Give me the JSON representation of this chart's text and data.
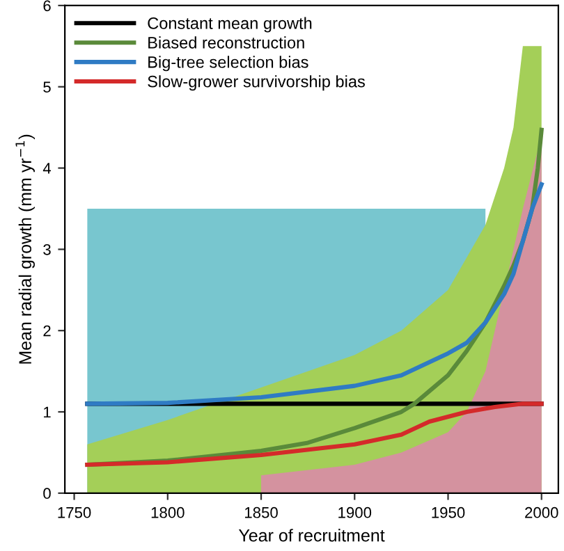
{
  "chart_data": {
    "type": "line",
    "xlabel": "Year of recruitment",
    "ylabel": "Mean radial growth (mm yr$^{−1}$)",
    "xlim": [
      1745,
      2009
    ],
    "ylim": [
      0,
      6
    ],
    "xticks": [
      1750,
      1800,
      1850,
      1900,
      1950,
      2000
    ],
    "yticks": [
      0,
      1,
      2,
      3,
      4,
      5,
      6
    ],
    "grid": false,
    "legend": "top left",
    "marker": "none",
    "line_style": "solid",
    "series": [
      {
        "type": "area",
        "color": "#78c6cf",
        "x": [
          1757,
          1800,
          1850,
          1900,
          1950,
          1970
        ],
        "values": [
          3.5,
          3.5,
          3.5,
          3.5,
          3.5,
          3.5
        ]
      },
      {
        "type": "area",
        "color": "#a4cf58",
        "x": [
          1757,
          1800,
          1850,
          1900,
          1925,
          1950,
          1960,
          1970,
          1980,
          1985,
          1990,
          2000
        ],
        "values": [
          0.6,
          0.9,
          1.3,
          1.7,
          2.0,
          2.5,
          2.9,
          3.3,
          4.0,
          4.5,
          5.5,
          5.5
        ]
      },
      {
        "type": "area",
        "color": "#d4929f",
        "x": [
          1850,
          1900,
          1925,
          1950,
          1960,
          1970,
          1980,
          1985,
          1990,
          2000
        ],
        "values": [
          0.22,
          0.35,
          0.5,
          0.75,
          1.0,
          1.5,
          2.5,
          3.0,
          3.5,
          4.4
        ]
      },
      {
        "name": "Constant mean growth",
        "color": "#000000",
        "x": [
          1757,
          2000
        ],
        "values": [
          1.1,
          1.1
        ]
      },
      {
        "name": "Biased reconstruction",
        "color": "#5a8a3a",
        "x": [
          1757,
          1800,
          1850,
          1875,
          1900,
          1925,
          1932,
          1950,
          1960,
          1970,
          1980,
          1985,
          1990,
          1995,
          1998,
          2000
        ],
        "values": [
          0.35,
          0.4,
          0.52,
          0.62,
          0.8,
          1.0,
          1.1,
          1.45,
          1.75,
          2.1,
          2.55,
          2.8,
          3.1,
          3.5,
          4.0,
          4.47
        ]
      },
      {
        "name": "Big-tree selection bias",
        "color": "#2f7bc4",
        "x": [
          1757,
          1800,
          1850,
          1900,
          1925,
          1950,
          1960,
          1970,
          1980,
          1985,
          1990,
          1995,
          2000
        ],
        "values": [
          1.1,
          1.11,
          1.18,
          1.32,
          1.45,
          1.72,
          1.85,
          2.1,
          2.45,
          2.7,
          3.1,
          3.5,
          3.8
        ]
      },
      {
        "name": "Slow-grower survivorship bias",
        "color": "#d42a2a",
        "x": [
          1757,
          1800,
          1850,
          1900,
          1925,
          1940,
          1960,
          1975,
          1990,
          2000
        ],
        "values": [
          0.35,
          0.38,
          0.47,
          0.6,
          0.72,
          0.88,
          1.0,
          1.06,
          1.1,
          1.1
        ]
      }
    ]
  }
}
